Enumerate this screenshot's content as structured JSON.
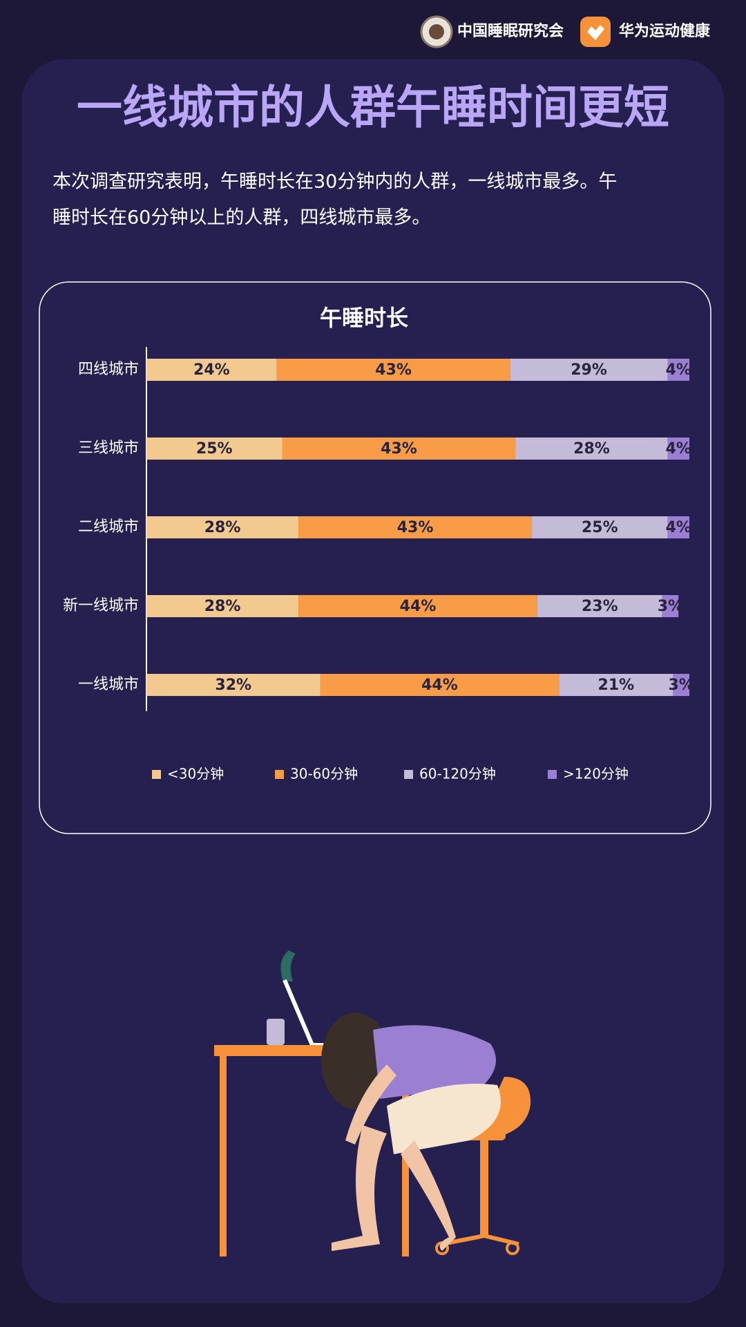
{
  "header": {
    "org": "中国睡眠研究会",
    "brand": "华为运动健康"
  },
  "title": "一线城市的人群午睡时间更短",
  "description": [
    "本次调查研究表明，午睡时长在30分钟内的人群，一线城市最多。午",
    "睡时长在60分钟以上的人群，四线城市最多。"
  ],
  "chart_data": {
    "type": "stacked-bar-horizontal",
    "title": "午睡时长",
    "categories": [
      "四线城市",
      "三线城市",
      "二线城市",
      "新一线城市",
      "一线城市"
    ],
    "series": [
      {
        "name": "<30分钟",
        "color": "#f2c98f",
        "values": [
          24,
          25,
          28,
          28,
          32
        ],
        "value_labels": [
          "24%",
          "25%",
          "28%",
          "28%",
          "32%"
        ]
      },
      {
        "name": "30-60分钟",
        "color": "#f99c47",
        "values": [
          43,
          43,
          43,
          44,
          44
        ],
        "value_labels": [
          "43%",
          "43%",
          "43%",
          "44%",
          "44%"
        ]
      },
      {
        "name": "60-120分钟",
        "color": "#c4bbd8",
        "values": [
          29,
          28,
          25,
          23,
          21
        ],
        "value_labels": [
          "29%",
          "28%",
          "25%",
          "23%",
          "21%"
        ]
      },
      {
        "name": ">120分钟",
        "color": "#9b7fd3",
        "values": [
          4,
          4,
          4,
          3,
          3
        ],
        "value_labels": [
          "4%",
          "4%",
          "4%",
          "3%",
          "3%"
        ]
      }
    ],
    "legend": "bottom"
  }
}
